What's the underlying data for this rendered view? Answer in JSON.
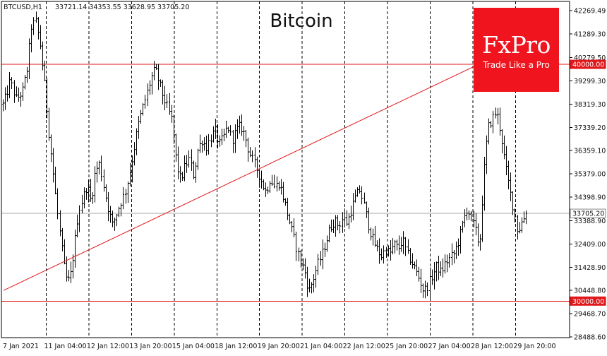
{
  "header": {
    "symbol": "BTCUSD,H1",
    "ohlc": "33721.14 34353.55 33628.95 33705.20"
  },
  "logo": {
    "brand": "FxPro",
    "tagline": "Trade Like a Pro",
    "color": "#f0141e"
  },
  "chart_data": {
    "type": "candlestick",
    "title": "Bitcoin",
    "symbol": "BTCUSD",
    "timeframe": "H1",
    "last_price": 33705.2,
    "ylim": [
      28486.68,
      42269.49
    ],
    "y_ticks": [
      "42269.49",
      "41289.30",
      "40279.50",
      "39299.30",
      "38319.30",
      "37339.20",
      "36359.10",
      "35379.00",
      "34398.90",
      "33388.90",
      "32409.00",
      "31428.90",
      "30448.80",
      "29468.70",
      "28488.60"
    ],
    "x_ticks": [
      "7 Jan 2021",
      "11 Jan 04:00",
      "12 Jan 12:00",
      "13 Jan 20:00",
      "15 Jan 04:00",
      "18 Jan 12:00",
      "19 Jan 20:00",
      "21 Jan 04:00",
      "22 Jan 12:00",
      "25 Jan 20:00",
      "27 Jan 04:00",
      "28 Jan 12:00",
      "29 Jan 20:00"
    ],
    "grid": {
      "vertical": true,
      "horizontal": false,
      "style": "dashed"
    },
    "levels": [
      {
        "label": "40000.00",
        "value": 40000,
        "color": "#e0181b"
      },
      {
        "label": "30000.00",
        "value": 30000,
        "color": "#e0181b"
      },
      {
        "label": "33705.20",
        "value": 33705.2,
        "color": "#aaaaaa"
      }
    ],
    "trendline": {
      "color": "#e0181b",
      "start": [
        0,
        30450
      ],
      "end": [
        13,
        41600
      ]
    },
    "price_path": [
      [
        0,
        38300
      ],
      [
        0.15,
        39300
      ],
      [
        0.3,
        38500
      ],
      [
        0.45,
        38900
      ],
      [
        0.55,
        39800
      ],
      [
        0.65,
        41600
      ],
      [
        0.75,
        41800
      ],
      [
        0.85,
        40900
      ],
      [
        0.95,
        39300
      ],
      [
        1.05,
        37300
      ],
      [
        1.15,
        35600
      ],
      [
        1.25,
        33900
      ],
      [
        1.35,
        32400
      ],
      [
        1.45,
        31000
      ],
      [
        1.55,
        30800
      ],
      [
        1.65,
        32200
      ],
      [
        1.75,
        33800
      ],
      [
        1.85,
        34300
      ],
      [
        1.95,
        34900
      ],
      [
        2.05,
        34200
      ],
      [
        2.15,
        35500
      ],
      [
        2.25,
        35800
      ],
      [
        2.35,
        34800
      ],
      [
        2.45,
        33900
      ],
      [
        2.55,
        33200
      ],
      [
        2.65,
        33700
      ],
      [
        2.75,
        34200
      ],
      [
        2.85,
        34600
      ],
      [
        2.95,
        35400
      ],
      [
        3.05,
        36400
      ],
      [
        3.15,
        37400
      ],
      [
        3.25,
        38100
      ],
      [
        3.35,
        38700
      ],
      [
        3.45,
        39400
      ],
      [
        3.55,
        39800
      ],
      [
        3.65,
        39200
      ],
      [
        3.75,
        38600
      ],
      [
        3.85,
        38100
      ],
      [
        3.95,
        37600
      ],
      [
        4.05,
        35800
      ],
      [
        4.15,
        35100
      ],
      [
        4.25,
        35700
      ],
      [
        4.35,
        36000
      ],
      [
        4.45,
        35300
      ],
      [
        4.55,
        36400
      ],
      [
        4.65,
        36800
      ],
      [
        4.75,
        36500
      ],
      [
        4.85,
        36900
      ],
      [
        4.95,
        37200
      ],
      [
        5.05,
        36600
      ],
      [
        5.15,
        36900
      ],
      [
        5.25,
        37400
      ],
      [
        5.35,
        36800
      ],
      [
        5.45,
        37200
      ],
      [
        5.55,
        37400
      ],
      [
        5.65,
        37000
      ],
      [
        5.75,
        36300
      ],
      [
        5.85,
        35900
      ],
      [
        5.95,
        35500
      ],
      [
        6.05,
        35000
      ],
      [
        6.15,
        34600
      ],
      [
        6.25,
        35200
      ],
      [
        6.35,
        34800
      ],
      [
        6.45,
        35000
      ],
      [
        6.55,
        34400
      ],
      [
        6.65,
        33700
      ],
      [
        6.75,
        33000
      ],
      [
        6.85,
        32300
      ],
      [
        6.95,
        31700
      ],
      [
        7.05,
        31300
      ],
      [
        7.15,
        30400
      ],
      [
        7.25,
        30900
      ],
      [
        7.35,
        31500
      ],
      [
        7.45,
        31900
      ],
      [
        7.55,
        32500
      ],
      [
        7.65,
        33100
      ],
      [
        7.75,
        33400
      ],
      [
        7.85,
        33200
      ],
      [
        7.95,
        33500
      ],
      [
        8.05,
        33300
      ],
      [
        8.15,
        33900
      ],
      [
        8.25,
        34400
      ],
      [
        8.35,
        34700
      ],
      [
        8.45,
        34000
      ],
      [
        8.55,
        33200
      ],
      [
        8.65,
        32600
      ],
      [
        8.75,
        32200
      ],
      [
        8.85,
        31900
      ],
      [
        8.95,
        32200
      ],
      [
        9.05,
        32000
      ],
      [
        9.15,
        32400
      ],
      [
        9.25,
        32200
      ],
      [
        9.35,
        32600
      ],
      [
        9.45,
        32000
      ],
      [
        9.55,
        31700
      ],
      [
        9.65,
        31300
      ],
      [
        9.75,
        30900
      ],
      [
        9.85,
        30400
      ],
      [
        9.95,
        30700
      ],
      [
        10.05,
        31100
      ],
      [
        10.15,
        31500
      ],
      [
        10.25,
        31200
      ],
      [
        10.35,
        31600
      ],
      [
        10.45,
        31800
      ],
      [
        10.55,
        32000
      ],
      [
        10.65,
        32500
      ],
      [
        10.75,
        33200
      ],
      [
        10.85,
        33900
      ],
      [
        10.95,
        33600
      ],
      [
        11.05,
        33000
      ],
      [
        11.15,
        32300
      ],
      [
        11.25,
        35300
      ],
      [
        11.35,
        37300
      ],
      [
        11.45,
        37700
      ],
      [
        11.55,
        38000
      ],
      [
        11.65,
        37100
      ],
      [
        11.75,
        35800
      ],
      [
        11.85,
        34800
      ],
      [
        11.95,
        33900
      ],
      [
        12.05,
        32900
      ],
      [
        12.15,
        33400
      ],
      [
        12.25,
        33705.2
      ]
    ]
  }
}
